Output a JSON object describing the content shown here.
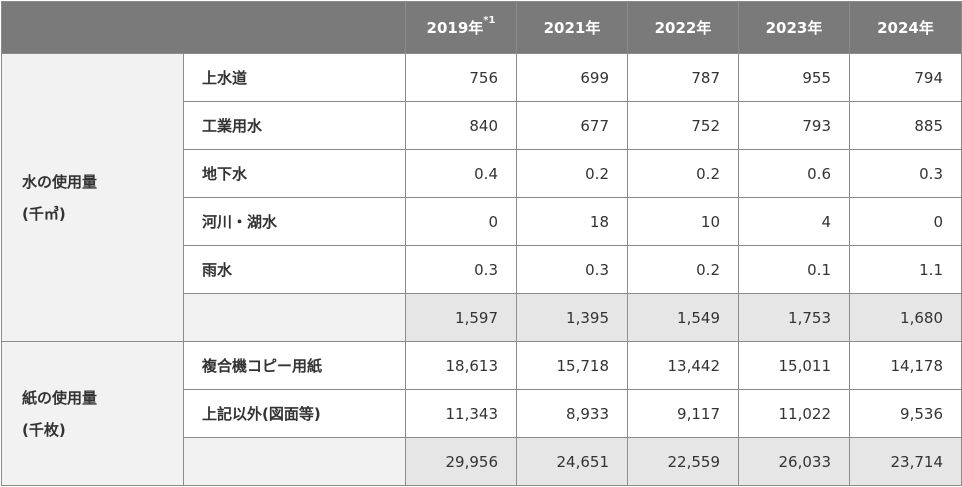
{
  "header": {
    "years": [
      "2019年",
      "2021年",
      "2022年",
      "2023年",
      "2024年"
    ],
    "footnote_mark": "*1"
  },
  "water": {
    "label_line1": "水の使用量",
    "label_line2": "(千㎥)",
    "rows": [
      {
        "label": "上水道",
        "values": [
          "756",
          "699",
          "787",
          "955",
          "794"
        ]
      },
      {
        "label": "工業用水",
        "values": [
          "840",
          "677",
          "752",
          "793",
          "885"
        ]
      },
      {
        "label": "地下水",
        "values": [
          "0.4",
          "0.2",
          "0.2",
          "0.6",
          "0.3"
        ]
      },
      {
        "label": "河川・湖水",
        "values": [
          "0",
          "18",
          "10",
          "4",
          "0"
        ]
      },
      {
        "label": "雨水",
        "values": [
          "0.3",
          "0.3",
          "0.2",
          "0.1",
          "1.1"
        ]
      }
    ],
    "total": [
      "1,597",
      "1,395",
      "1,549",
      "1,753",
      "1,680"
    ]
  },
  "paper": {
    "label_line1": "紙の使用量",
    "label_line2": "(千枚)",
    "rows": [
      {
        "label": "複合機コピー用紙",
        "values": [
          "18,613",
          "15,718",
          "13,442",
          "15,011",
          "14,178"
        ]
      },
      {
        "label": "上記以外(図面等)",
        "values": [
          "11,343",
          "8,933",
          "9,117",
          "11,022",
          "9,536"
        ]
      }
    ],
    "total": [
      "29,956",
      "24,651",
      "22,559",
      "26,033",
      "23,714"
    ]
  }
}
